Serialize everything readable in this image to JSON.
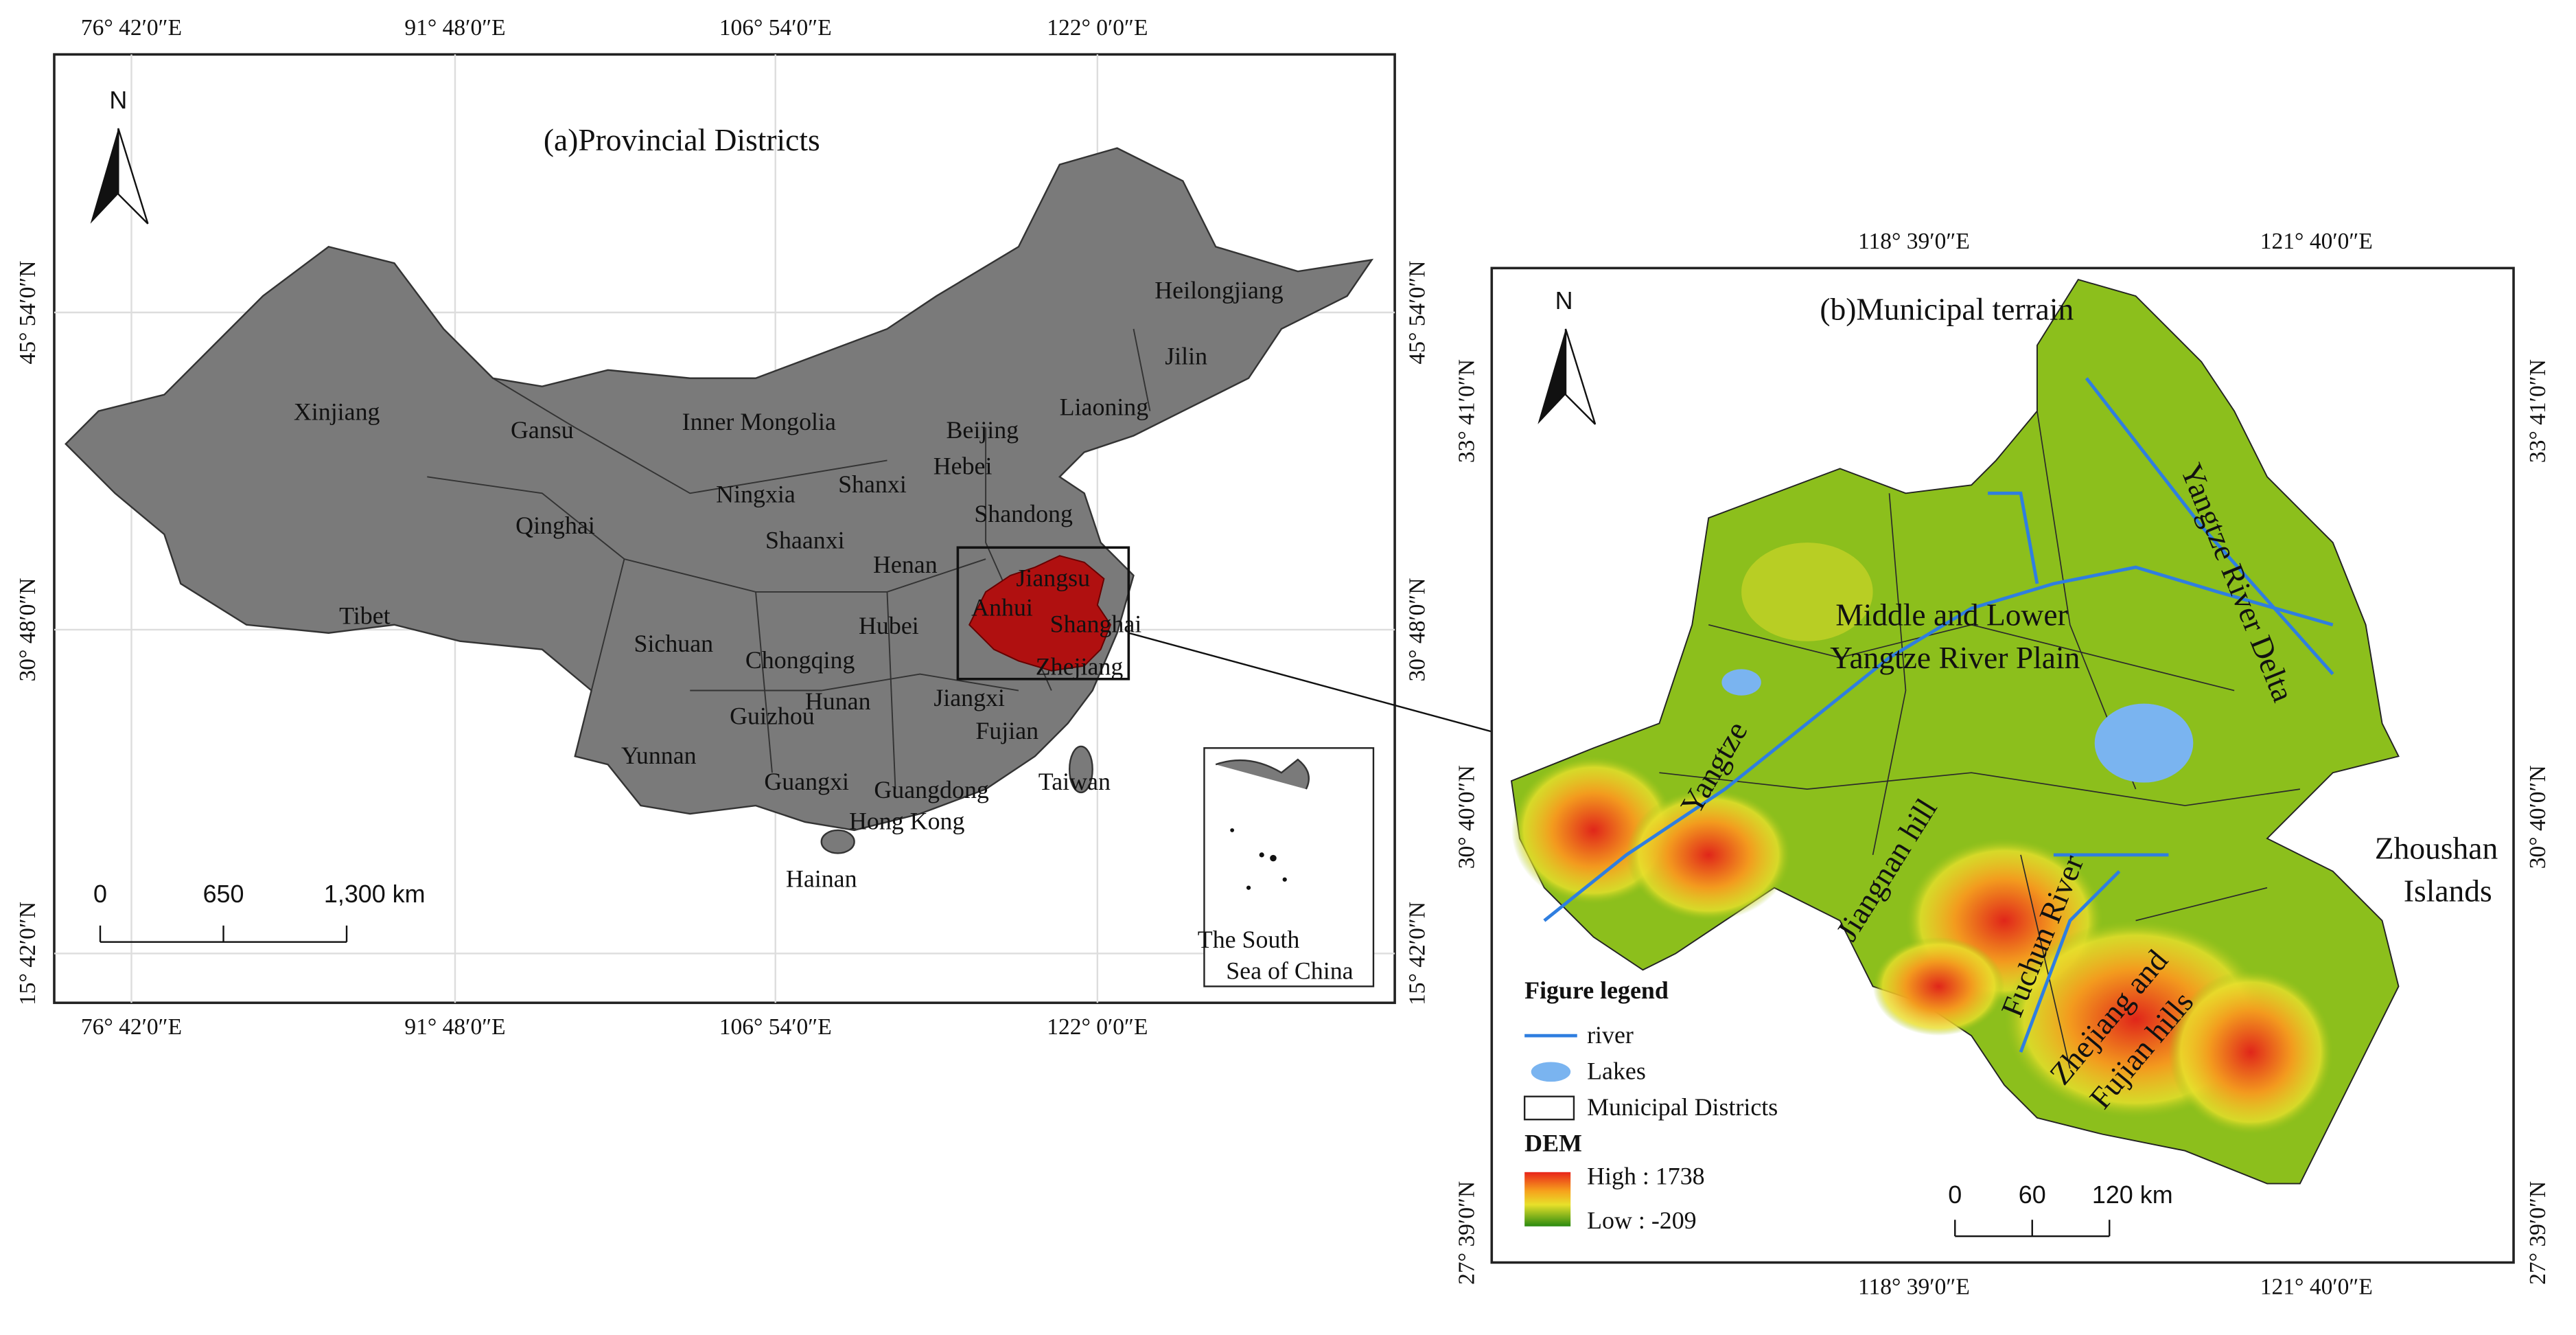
{
  "panel_a": {
    "title": "(a)Provincial Districts",
    "north": "N",
    "lon_labels": [
      "76° 42′0″E",
      "91° 48′0″E",
      "106° 54′0″E",
      "122° 0′0″E"
    ],
    "lat_labels": [
      "45° 54′0″N",
      "30° 48′0″N",
      "15° 42′0″N"
    ],
    "provinces": [
      "Xinjiang",
      "Gansu",
      "Inner Mongolia",
      "Heilongjiang",
      "Jilin",
      "Liaoning",
      "Beijing",
      "Hebei",
      "Ningxia",
      "Shanxi",
      "Qinghai",
      "Shandong",
      "Shaanxi",
      "Henan",
      "Jiangsu",
      "Anhui",
      "Shanghai",
      "Tibet",
      "Sichuan",
      "Hubei",
      "Chongqing",
      "Zhejiang",
      "Hunan",
      "Jiangxi",
      "Guizhou",
      "Fujian",
      "Yunnan",
      "Guangxi",
      "Guangdong",
      "Taiwan",
      "Hong Kong",
      "Hainan"
    ],
    "scale_bar": [
      "0",
      "650",
      "1,300 km"
    ],
    "inset": [
      "The South",
      "Sea of China"
    ]
  },
  "panel_b": {
    "title": "(b)Municipal terrain",
    "north": "N",
    "lon_labels": [
      "118° 39′0″E",
      "121° 40′0″E"
    ],
    "lat_labels": [
      "33° 41′0″N",
      "30° 40′0″N",
      "27° 39′0″N"
    ],
    "features": {
      "plain": [
        "Middle and Lower",
        "Yangtze River Plain"
      ],
      "yangtze": "Yangtze",
      "delta": "Yangtze River Delta",
      "jiangnan": "Jiangnan hill",
      "fuchun": "Fuchun River",
      "zhejiang": [
        "Zhejiang and",
        "Fujian hills"
      ],
      "zhoushan": [
        "Zhoushan",
        "Islands"
      ]
    },
    "legend": {
      "title": "Figure legend",
      "river": "river",
      "lakes": "Lakes",
      "districts": "Municipal Districts",
      "dem": "DEM",
      "high": "High : 1738",
      "low": "Low : -209"
    },
    "scale_bar": [
      "0",
      "60",
      "120 km"
    ]
  }
}
